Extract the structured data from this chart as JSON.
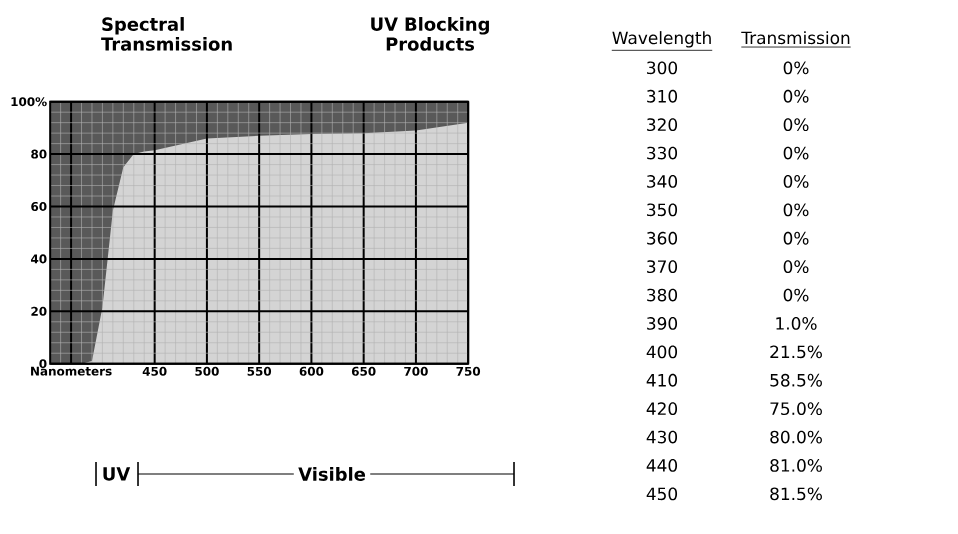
{
  "chart_data": {
    "type": "area",
    "title": "Spectral Transmission",
    "subtitle": "UV Blocking Products",
    "x": [
      350,
      380,
      390,
      400,
      410,
      420,
      430,
      440,
      450,
      500,
      550,
      600,
      650,
      700,
      750
    ],
    "series": [
      {
        "color": "#d4d4d4",
        "values": [
          0,
          0,
          1,
          21.5,
          58.5,
          75,
          80,
          81,
          81.5,
          86,
          87,
          87.7,
          88,
          89,
          92
        ]
      }
    ],
    "xlim": [
      350,
      750
    ],
    "ylim": [
      0,
      100
    ],
    "xticks": [
      {
        "value": 370,
        "label": "Nanometers"
      },
      450,
      500,
      550,
      600,
      650,
      700,
      750
    ],
    "yticks": [
      0,
      20,
      40,
      60,
      80,
      {
        "value": 100,
        "label": "100%"
      }
    ],
    "grid": true,
    "annotations": [
      "UV",
      "Visible",
      "Wavelength",
      "Transmission",
      "300",
      "0%",
      "310",
      "0%",
      "320",
      "0%",
      "330",
      "0%",
      "340",
      "0%",
      "350",
      "0%",
      "360",
      "0%",
      "370",
      "0%",
      "380",
      "0%",
      "390",
      "1.0%",
      "400",
      "21.5%",
      "410",
      "58.5%",
      "420",
      "75.0%",
      "430",
      "80.0%",
      "440",
      "81.0%",
      "450",
      "81.5%"
    ]
  }
}
